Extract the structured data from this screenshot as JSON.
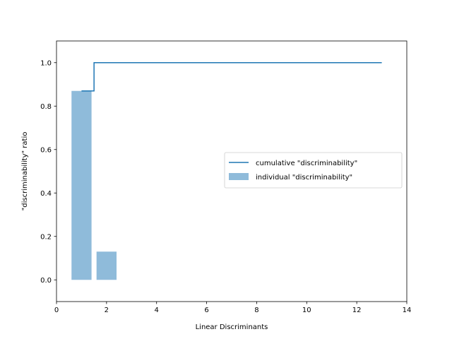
{
  "chart_data": {
    "type": "bar",
    "xlabel": "Linear Discriminants",
    "ylabel": "\"discriminability\" ratio",
    "xlim": [
      0,
      14
    ],
    "ylim": [
      -0.1,
      1.1
    ],
    "xticks": [
      0,
      2,
      4,
      6,
      8,
      10,
      12,
      14
    ],
    "yticks": [
      0.0,
      0.2,
      0.4,
      0.6,
      0.8,
      1.0
    ],
    "xtick_labels": [
      "0",
      "2",
      "4",
      "6",
      "8",
      "10",
      "12",
      "14"
    ],
    "ytick_labels": [
      "0.0",
      "0.2",
      "0.4",
      "0.6",
      "0.8",
      "1.0"
    ],
    "grid": false,
    "legend_position": "center-right",
    "series": [
      {
        "name": "individual \"discriminability\"",
        "type": "bar",
        "color": "#8fbbda",
        "x": [
          1,
          2,
          3,
          4,
          5,
          6,
          7,
          8,
          9,
          10,
          11,
          12,
          13
        ],
        "values": [
          0.87,
          0.13,
          0,
          0,
          0,
          0,
          0,
          0,
          0,
          0,
          0,
          0,
          0
        ]
      },
      {
        "name": "cumulative \"discriminability\"",
        "type": "step",
        "color": "#1f77b4",
        "x": [
          1,
          2,
          3,
          4,
          5,
          6,
          7,
          8,
          9,
          10,
          11,
          12,
          13
        ],
        "values": [
          0.87,
          1.0,
          1.0,
          1.0,
          1.0,
          1.0,
          1.0,
          1.0,
          1.0,
          1.0,
          1.0,
          1.0,
          1.0
        ]
      }
    ]
  }
}
